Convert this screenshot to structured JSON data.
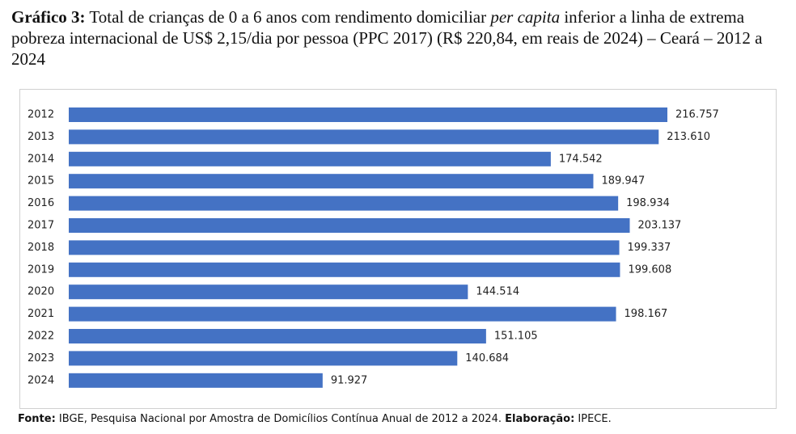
{
  "title": {
    "label": "Gráfico 3:",
    "text_before": " Total de crianças de 0 a 6 anos com rendimento domiciliar ",
    "italic": "per capita",
    "text_after": " inferior a linha de extrema pobreza internacional de US$ 2,15/dia por pessoa (PPC 2017) (R$ 220,84, em reais de 2024) – Ceará – 2012 a 2024"
  },
  "source": {
    "label": "Fonte:",
    "text": " IBGE, Pesquisa Nacional por Amostra de Domicílios Contínua Anual de 2012 a 2024. ",
    "credit_label": "Elaboração:",
    "credit_text": " IPECE."
  },
  "colors": {
    "bar": "#4472C4",
    "text": "#222222"
  },
  "chart_data": {
    "type": "bar",
    "orientation": "horizontal",
    "categories": [
      "2012",
      "2013",
      "2014",
      "2015",
      "2016",
      "2017",
      "2018",
      "2019",
      "2020",
      "2021",
      "2022",
      "2023",
      "2024"
    ],
    "values": [
      216757,
      213610,
      174542,
      189947,
      198934,
      203137,
      199337,
      199608,
      144514,
      198167,
      151105,
      140684,
      91927
    ],
    "data_labels": [
      "216.757",
      "213.610",
      "174.542",
      "189.947",
      "198.934",
      "203.137",
      "199.337",
      "199.608",
      "144.514",
      "198.167",
      "151.105",
      "140.684",
      "91.927"
    ],
    "title": "",
    "xlabel": "",
    "ylabel": "",
    "xlim": [
      0,
      216757
    ],
    "grid": false,
    "legend": "none"
  }
}
